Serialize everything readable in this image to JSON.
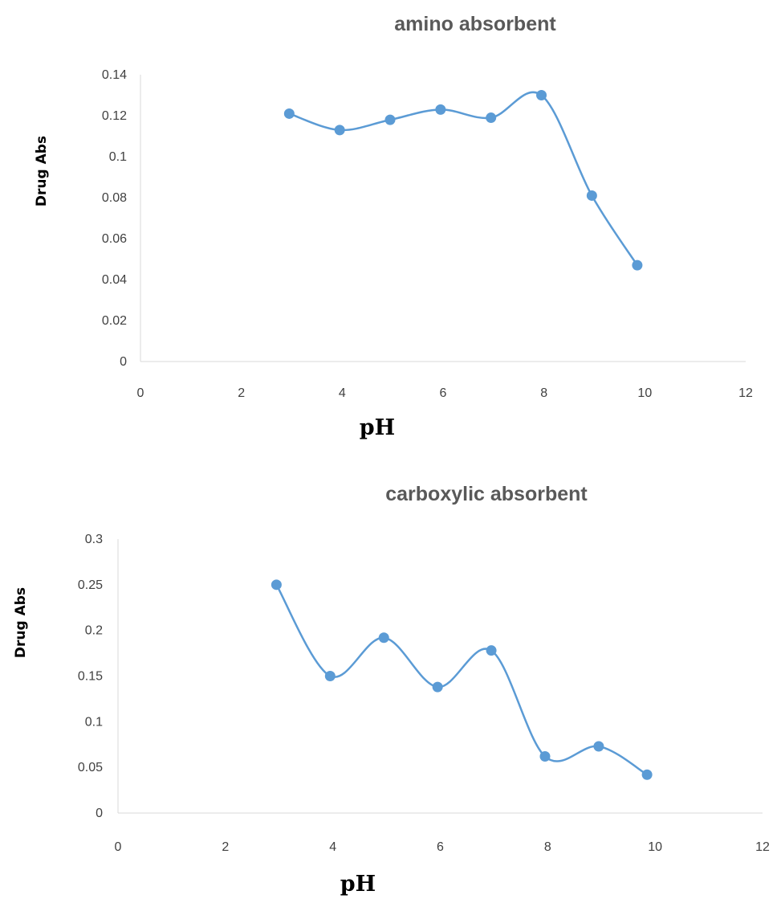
{
  "chart_data": [
    {
      "type": "scatter",
      "title": "amino absorbent",
      "xlabel": "pH",
      "ylabel": "Drug  Abs",
      "xlim": [
        0,
        12
      ],
      "ylim": [
        0,
        0.14
      ],
      "x_ticks": [
        "0",
        "2",
        "4",
        "6",
        "8",
        "10",
        "12"
      ],
      "y_ticks": [
        "0",
        "0.02",
        "0.04",
        "0.06",
        "0.08",
        "0.1",
        "0.12",
        "0.14"
      ],
      "smooth_line": true,
      "markers": true,
      "series": [
        {
          "x": [
            2.95,
            3.95,
            4.95,
            5.95,
            6.95,
            7.95,
            8.95,
            9.85
          ],
          "y": [
            0.121,
            0.113,
            0.118,
            0.123,
            0.119,
            0.13,
            0.081,
            0.047
          ]
        }
      ],
      "color": "#5b9bd5"
    },
    {
      "type": "scatter",
      "title": "carboxylic   absorbent",
      "xlabel": "pH",
      "ylabel": "Drug  Abs",
      "xlim": [
        0,
        12
      ],
      "ylim": [
        0,
        0.3
      ],
      "x_ticks": [
        "0",
        "2",
        "4",
        "6",
        "8",
        "10",
        "12"
      ],
      "y_ticks": [
        "0",
        "0.05",
        "0.1",
        "0.15",
        "0.2",
        "0.25",
        "0.3"
      ],
      "smooth_line": true,
      "markers": true,
      "series": [
        {
          "x": [
            2.95,
            3.95,
            4.95,
            5.95,
            6.95,
            7.95,
            8.95,
            9.85
          ],
          "y": [
            0.25,
            0.15,
            0.192,
            0.138,
            0.178,
            0.062,
            0.073,
            0.042
          ]
        }
      ],
      "color": "#5b9bd5"
    }
  ]
}
